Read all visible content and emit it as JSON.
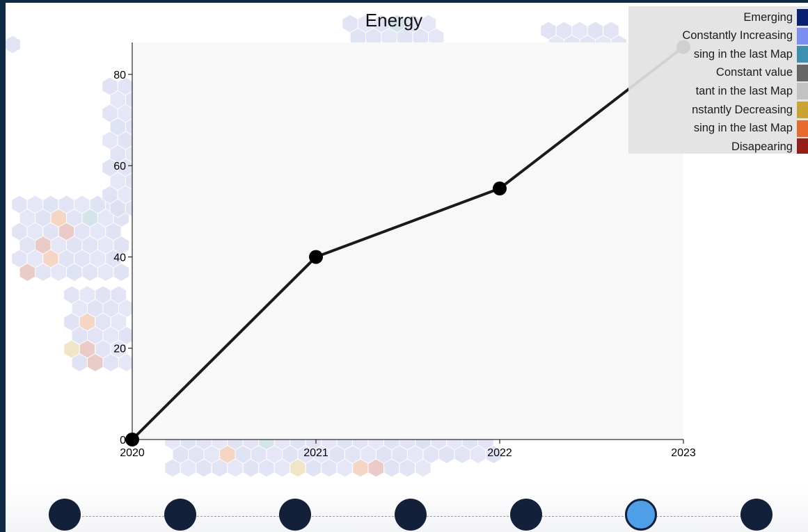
{
  "chart_data": {
    "type": "line",
    "title": "Energy",
    "x": [
      "2020",
      "2021",
      "2022",
      "2023"
    ],
    "series": [
      {
        "values": [
          0,
          40,
          55,
          86
        ]
      }
    ],
    "ylim": [
      0,
      87
    ],
    "y_ticks": [
      "0",
      "20",
      "40",
      "60",
      "80"
    ],
    "x_ticks": [
      "2020",
      "2021",
      "2022",
      "2023"
    ],
    "grid": false,
    "legend_position": "top-right"
  },
  "legend": {
    "items": [
      {
        "label": "Emerging",
        "color": "#0b1f73"
      },
      {
        "label": "Constantly Increasing",
        "color": "#7d8ef3"
      },
      {
        "label": "sing in the last Map",
        "color": "#3d8fb0"
      },
      {
        "label": "Constant value",
        "color": "#666666"
      },
      {
        "label": "tant in the last Map",
        "color": "#c2c2c2"
      },
      {
        "label": "nstantly Decreasing",
        "color": "#c9a433"
      },
      {
        "label": "sing in the last Map",
        "color": "#e86a2c"
      },
      {
        "label": "Disapearing",
        "color": "#951f17"
      }
    ]
  },
  "timeline": {
    "steps": 7,
    "active_index": 5
  }
}
